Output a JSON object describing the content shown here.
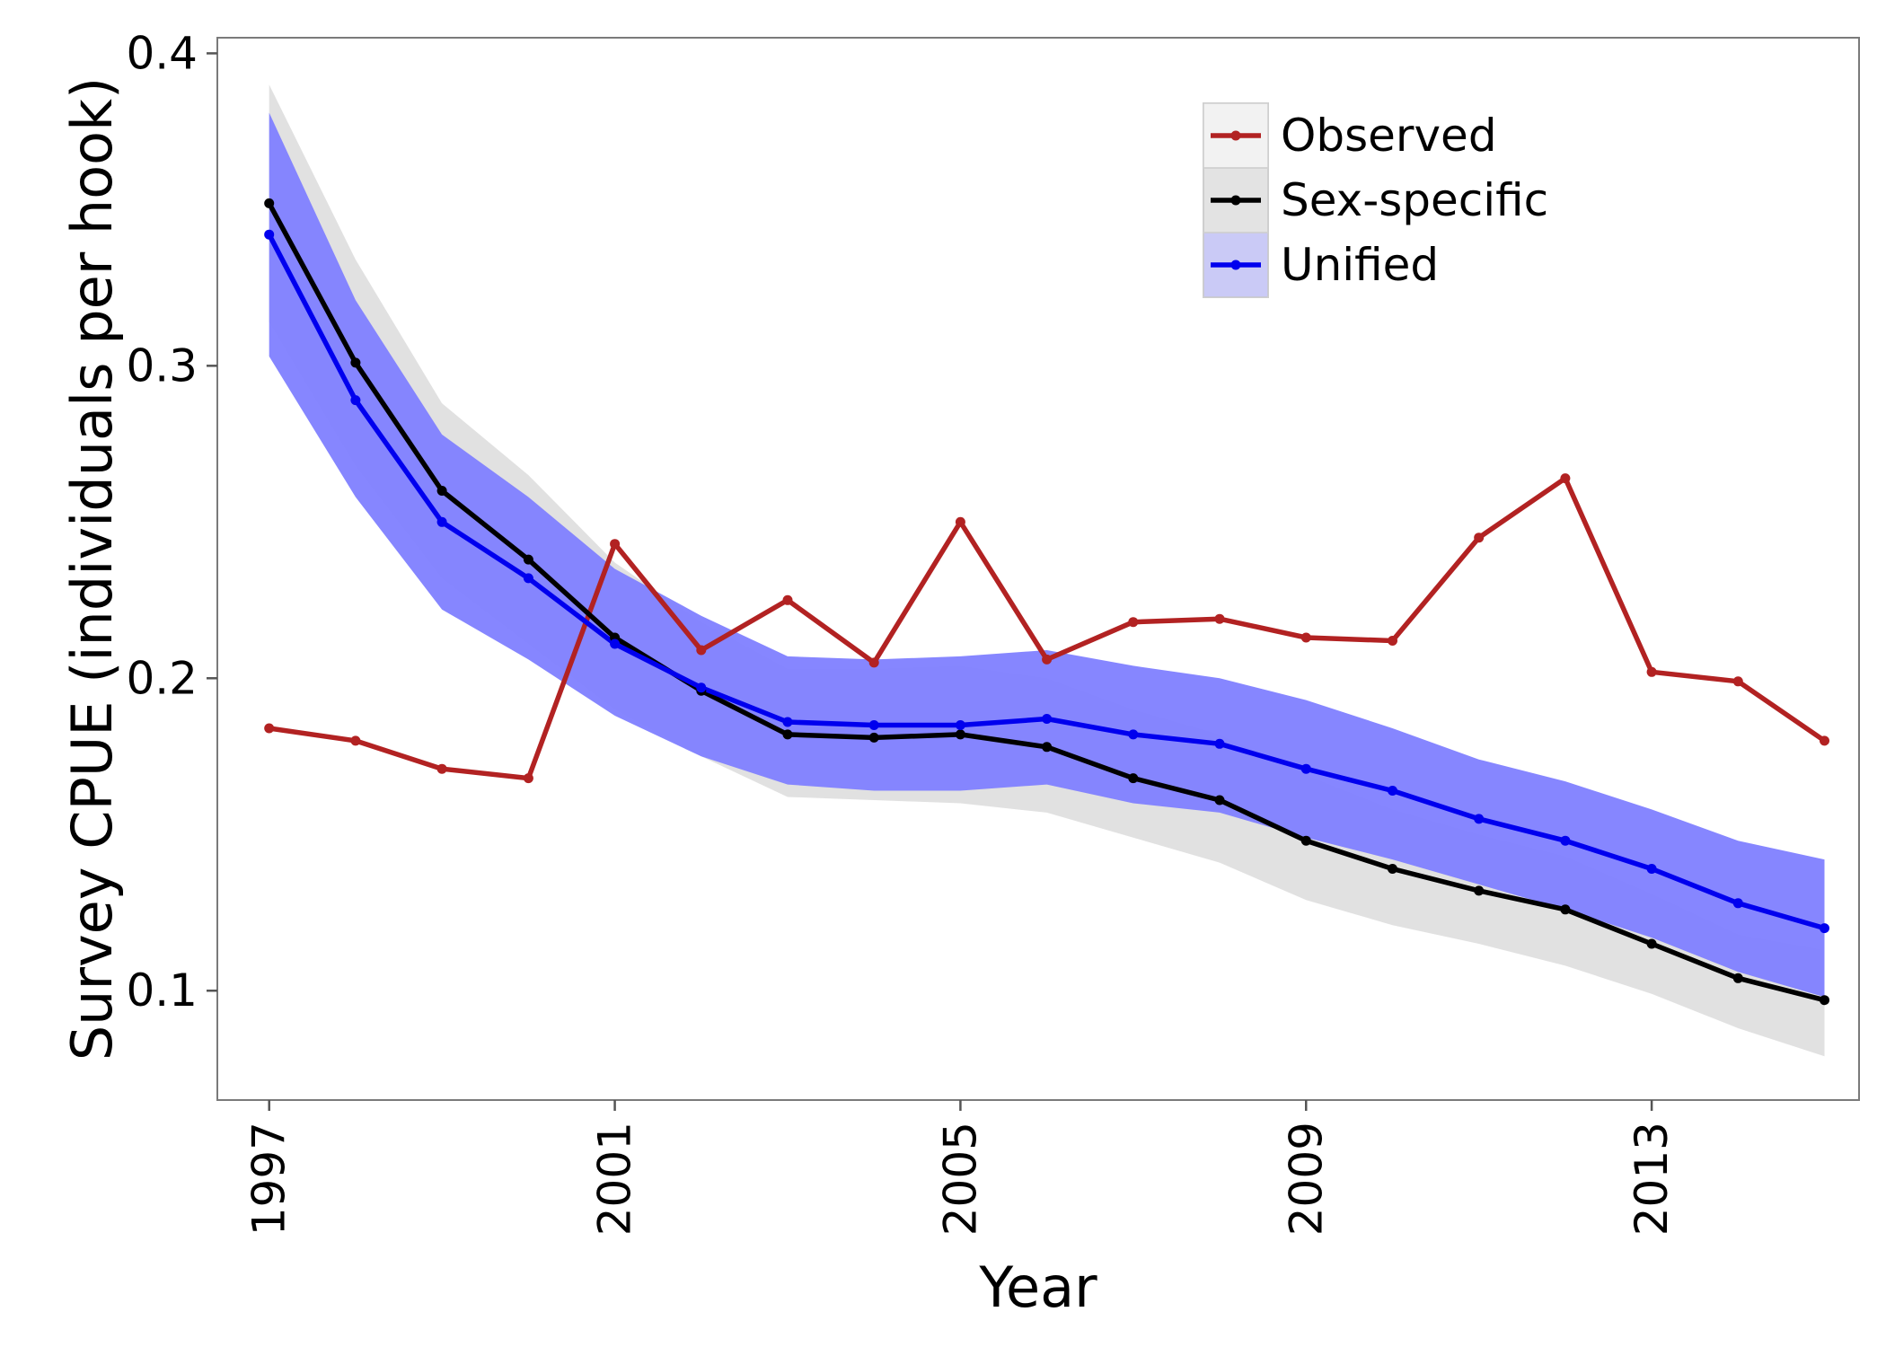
{
  "chart_data": {
    "type": "line",
    "xlabel": "Year",
    "ylabel": "Survey CPUE (individuals per hook)",
    "x": [
      1997,
      1998,
      1999,
      2000,
      2001,
      2002,
      2003,
      2004,
      2005,
      2006,
      2007,
      2008,
      2009,
      2010,
      2011,
      2012,
      2013,
      2014,
      2015
    ],
    "xlim": [
      1996.4,
      2015.4
    ],
    "ylim": [
      0.065,
      0.405
    ],
    "x_ticks": [
      1997,
      2001,
      2005,
      2009,
      2013
    ],
    "x_tick_labels": [
      "1997",
      "2001",
      "2005",
      "2009",
      "2013"
    ],
    "y_ticks": [
      0.1,
      0.2,
      0.3,
      0.4
    ],
    "y_tick_labels": [
      "0.1",
      "0.2",
      "0.3",
      "0.4"
    ],
    "grid": false,
    "legend_position": "top-right",
    "series": [
      {
        "name": "Observed",
        "color": "#B22222",
        "values": [
          0.184,
          0.18,
          0.171,
          0.168,
          0.243,
          0.209,
          0.225,
          0.205,
          0.25,
          0.206,
          0.218,
          0.219,
          0.213,
          0.212,
          0.245,
          0.264,
          0.202,
          0.199,
          0.18
        ]
      },
      {
        "name": "Sex-specific",
        "color": "#000000",
        "values": [
          0.352,
          0.301,
          0.26,
          0.238,
          0.213,
          0.196,
          0.182,
          0.181,
          0.182,
          0.178,
          0.168,
          0.161,
          0.148,
          0.139,
          0.132,
          0.126,
          0.115,
          0.104,
          0.097
        ],
        "band_lower": [
          0.314,
          0.268,
          0.232,
          0.211,
          0.19,
          0.175,
          0.162,
          0.161,
          0.16,
          0.157,
          0.149,
          0.141,
          0.129,
          0.121,
          0.115,
          0.108,
          0.099,
          0.088,
          0.079
        ],
        "band_upper": [
          0.39,
          0.334,
          0.288,
          0.265,
          0.237,
          0.218,
          0.203,
          0.203,
          0.204,
          0.2,
          0.19,
          0.182,
          0.169,
          0.158,
          0.15,
          0.143,
          0.131,
          0.118,
          0.113
        ],
        "band_color": "#C8C8C8"
      },
      {
        "name": "Unified",
        "color": "#0000EE",
        "values": [
          0.342,
          0.289,
          0.25,
          0.232,
          0.211,
          0.197,
          0.186,
          0.185,
          0.185,
          0.187,
          0.182,
          0.179,
          0.171,
          0.164,
          0.155,
          0.148,
          0.139,
          0.128,
          0.12
        ],
        "band_lower": [
          0.303,
          0.258,
          0.222,
          0.206,
          0.188,
          0.175,
          0.166,
          0.164,
          0.164,
          0.166,
          0.16,
          0.157,
          0.149,
          0.142,
          0.134,
          0.126,
          0.117,
          0.106,
          0.098
        ],
        "band_upper": [
          0.381,
          0.321,
          0.278,
          0.258,
          0.235,
          0.22,
          0.207,
          0.206,
          0.207,
          0.209,
          0.204,
          0.2,
          0.193,
          0.184,
          0.174,
          0.167,
          0.158,
          0.148,
          0.142
        ],
        "band_color": "#8080FF"
      }
    ]
  }
}
